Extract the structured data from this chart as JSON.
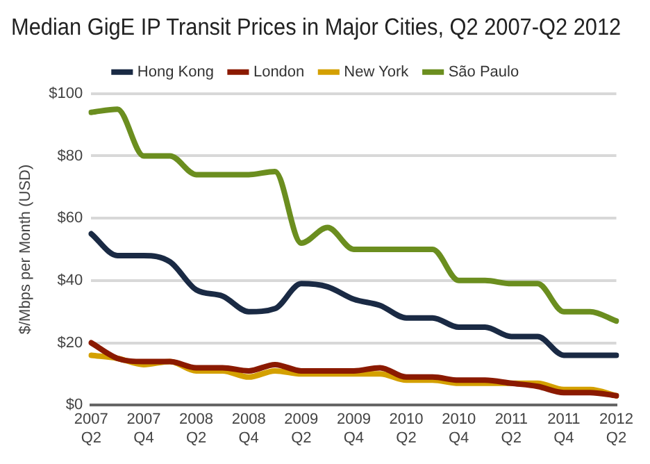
{
  "chart_data": {
    "type": "line",
    "title": "Median GigE IP Transit Prices in Major Cities, Q2 2007-Q2 2012",
    "ylabel": "$/Mbps per Month (USD)",
    "categories": [
      "2007 Q2",
      null,
      "2007 Q4",
      null,
      "2008 Q2",
      null,
      "2008 Q4",
      null,
      "2009 Q2",
      null,
      "2009 Q4",
      null,
      "2010 Q2",
      null,
      "2010 Q4",
      null,
      "2011 Q2",
      null,
      "2011 Q4",
      null,
      "2012 Q2"
    ],
    "series": [
      {
        "name": "Hong Kong",
        "color": "#1a2a44",
        "values": [
          55,
          48,
          48,
          46,
          37,
          35,
          30,
          31,
          39,
          38,
          34,
          32,
          28,
          28,
          25,
          25,
          22,
          22,
          16,
          16,
          16
        ]
      },
      {
        "name": "London",
        "color": "#8b1a00",
        "values": [
          20,
          15,
          14,
          14,
          12,
          12,
          11,
          13,
          11,
          11,
          11,
          12,
          9,
          9,
          8,
          8,
          7,
          6,
          4,
          4,
          3
        ]
      },
      {
        "name": "New York",
        "color": "#d4a000",
        "values": [
          16,
          15,
          13,
          14,
          11,
          11,
          9,
          11,
          10,
          10,
          10,
          10,
          8,
          8,
          7,
          7,
          7,
          7,
          5,
          5,
          3
        ]
      },
      {
        "name": "São Paulo",
        "color": "#6b8e1f",
        "values": [
          94,
          95,
          80,
          80,
          74,
          74,
          74,
          75,
          52,
          57,
          50,
          50,
          50,
          50,
          40,
          40,
          39,
          39,
          30,
          30,
          27
        ]
      }
    ],
    "ylim": [
      0,
      100
    ],
    "yticks": [
      {
        "value": 0,
        "label": "$0"
      },
      {
        "value": 20,
        "label": "$20"
      },
      {
        "value": 40,
        "label": "$40"
      },
      {
        "value": 60,
        "label": "$60"
      },
      {
        "value": 80,
        "label": "$80"
      },
      {
        "value": 100,
        "label": "$100"
      }
    ],
    "grid": "y",
    "legend": "top",
    "marker": "none",
    "line_style": "solid"
  }
}
